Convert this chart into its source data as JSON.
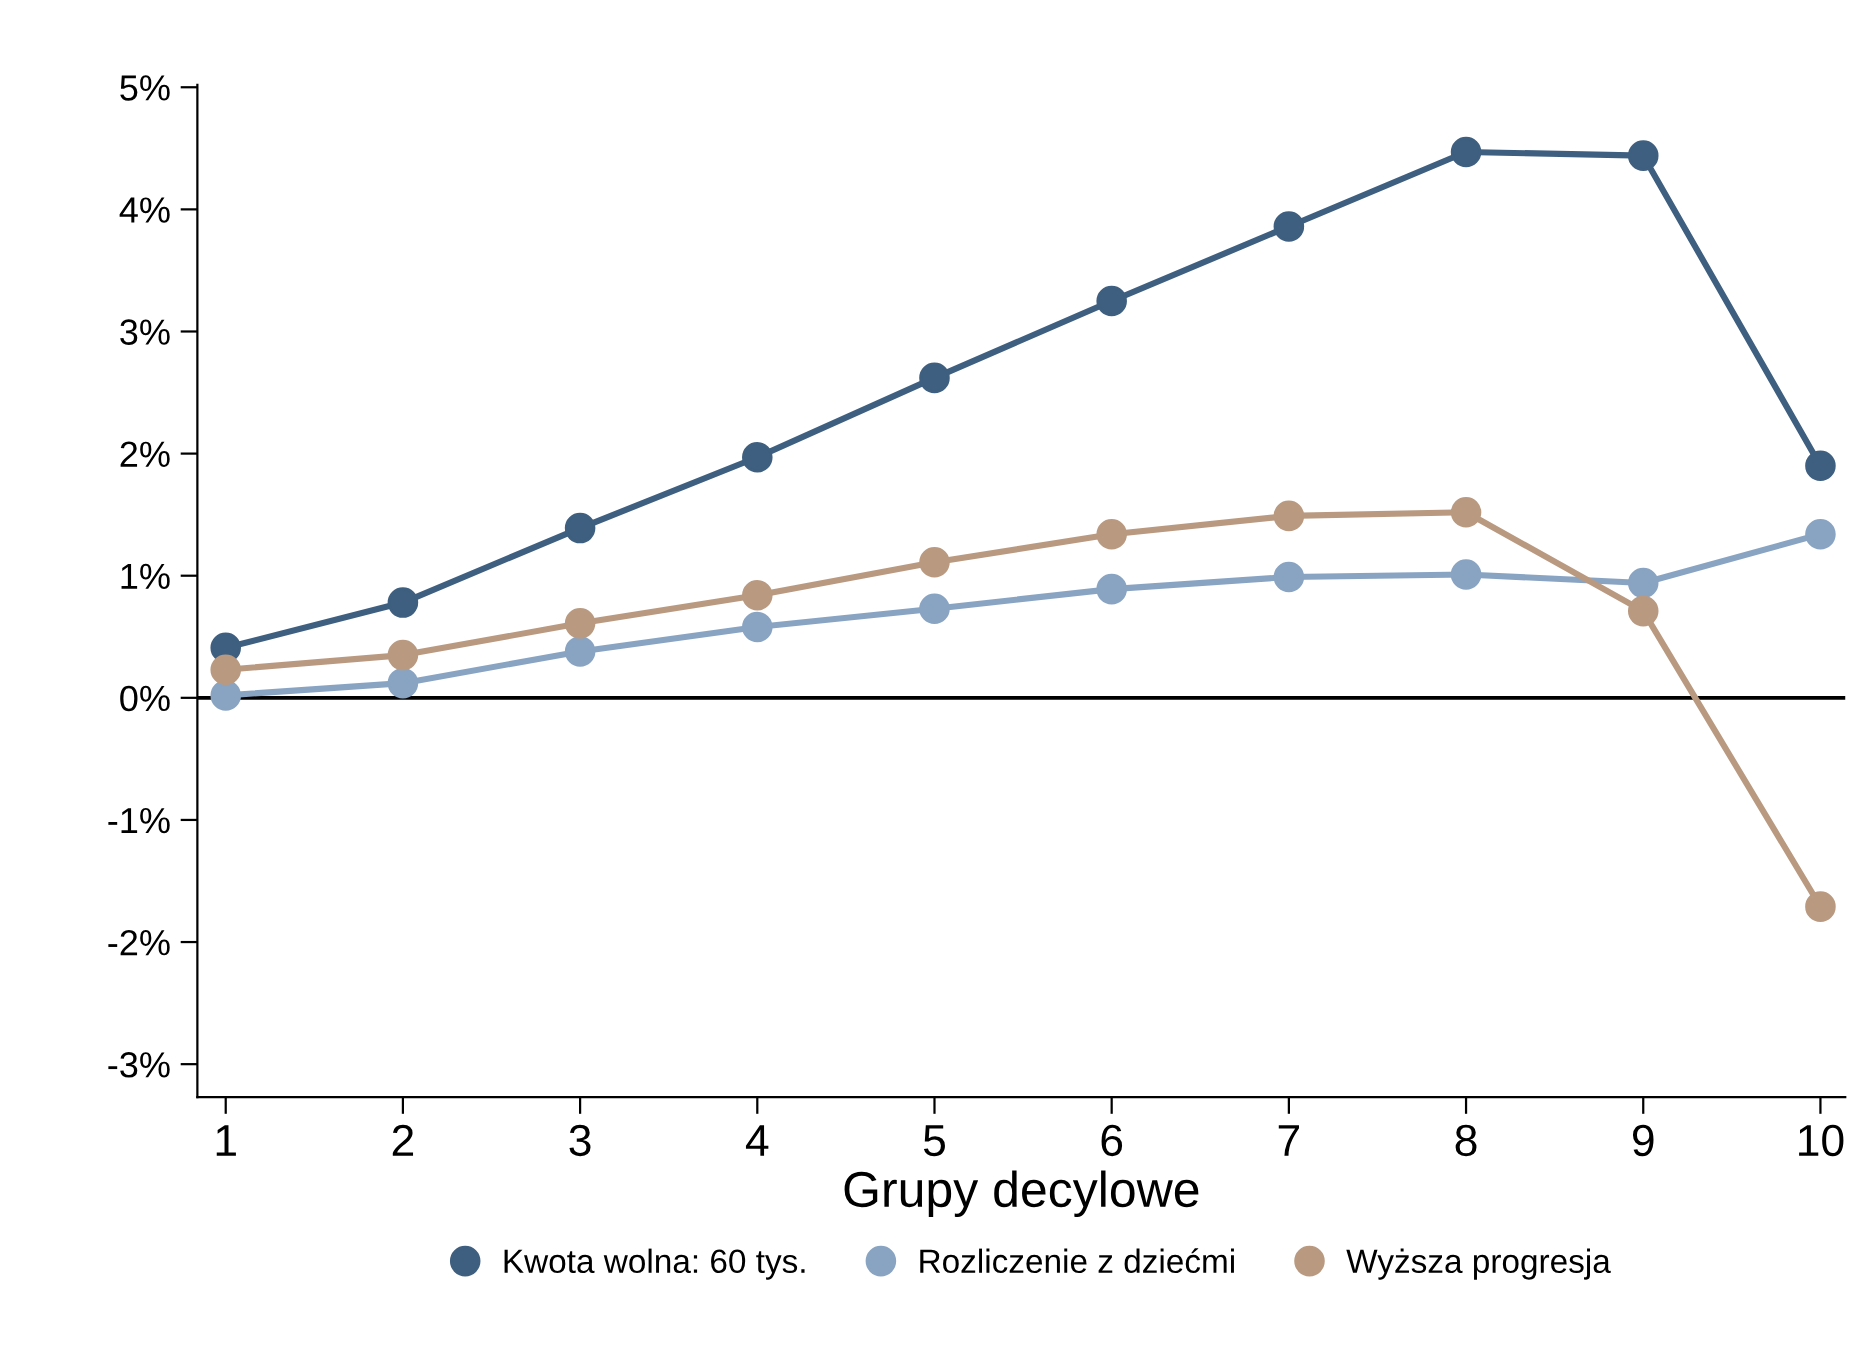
{
  "chart_data": {
    "type": "line",
    "xlabel": "Grupy decylowe",
    "x": [
      1,
      2,
      3,
      4,
      5,
      6,
      7,
      8,
      9,
      10
    ],
    "series": [
      {
        "name": "Kwota wolna: 60 tys.",
        "color": "#3e5f7f",
        "values": [
          0.41,
          0.78,
          1.39,
          1.97,
          2.62,
          3.25,
          3.86,
          4.47,
          4.44,
          1.9
        ]
      },
      {
        "name": "Rozliczenie z dziećmi",
        "color": "#89a4c2",
        "values": [
          0.02,
          0.12,
          0.38,
          0.58,
          0.73,
          0.89,
          0.99,
          1.01,
          0.94,
          1.34
        ]
      },
      {
        "name": "Wyższa progresja",
        "color": "#b99a80",
        "values": [
          0.23,
          0.35,
          0.61,
          0.84,
          1.11,
          1.34,
          1.49,
          1.52,
          0.71,
          -1.71
        ]
      }
    ],
    "xlim": [
      0.84,
      10.14
    ],
    "xticks": [
      1,
      2,
      3,
      4,
      5,
      6,
      7,
      8,
      9,
      10
    ],
    "ylim": [
      -3.27,
      5.02
    ],
    "yticks": [
      {
        "value": -3,
        "label": "-3%"
      },
      {
        "value": -2,
        "label": "-2%"
      },
      {
        "value": -1,
        "label": "-1%"
      },
      {
        "value": 0,
        "label": "0%"
      },
      {
        "value": 1,
        "label": "1%"
      },
      {
        "value": 2,
        "label": "2%"
      },
      {
        "value": 3,
        "label": "3%"
      },
      {
        "value": 4,
        "label": "4%"
      },
      {
        "value": 5,
        "label": "5%"
      }
    ],
    "ref_lines": [
      {
        "axis": "y",
        "value": 0,
        "color": "#000000"
      }
    ],
    "marker": "circle",
    "line_style": "solid",
    "grid": false,
    "legend": "bottom"
  }
}
